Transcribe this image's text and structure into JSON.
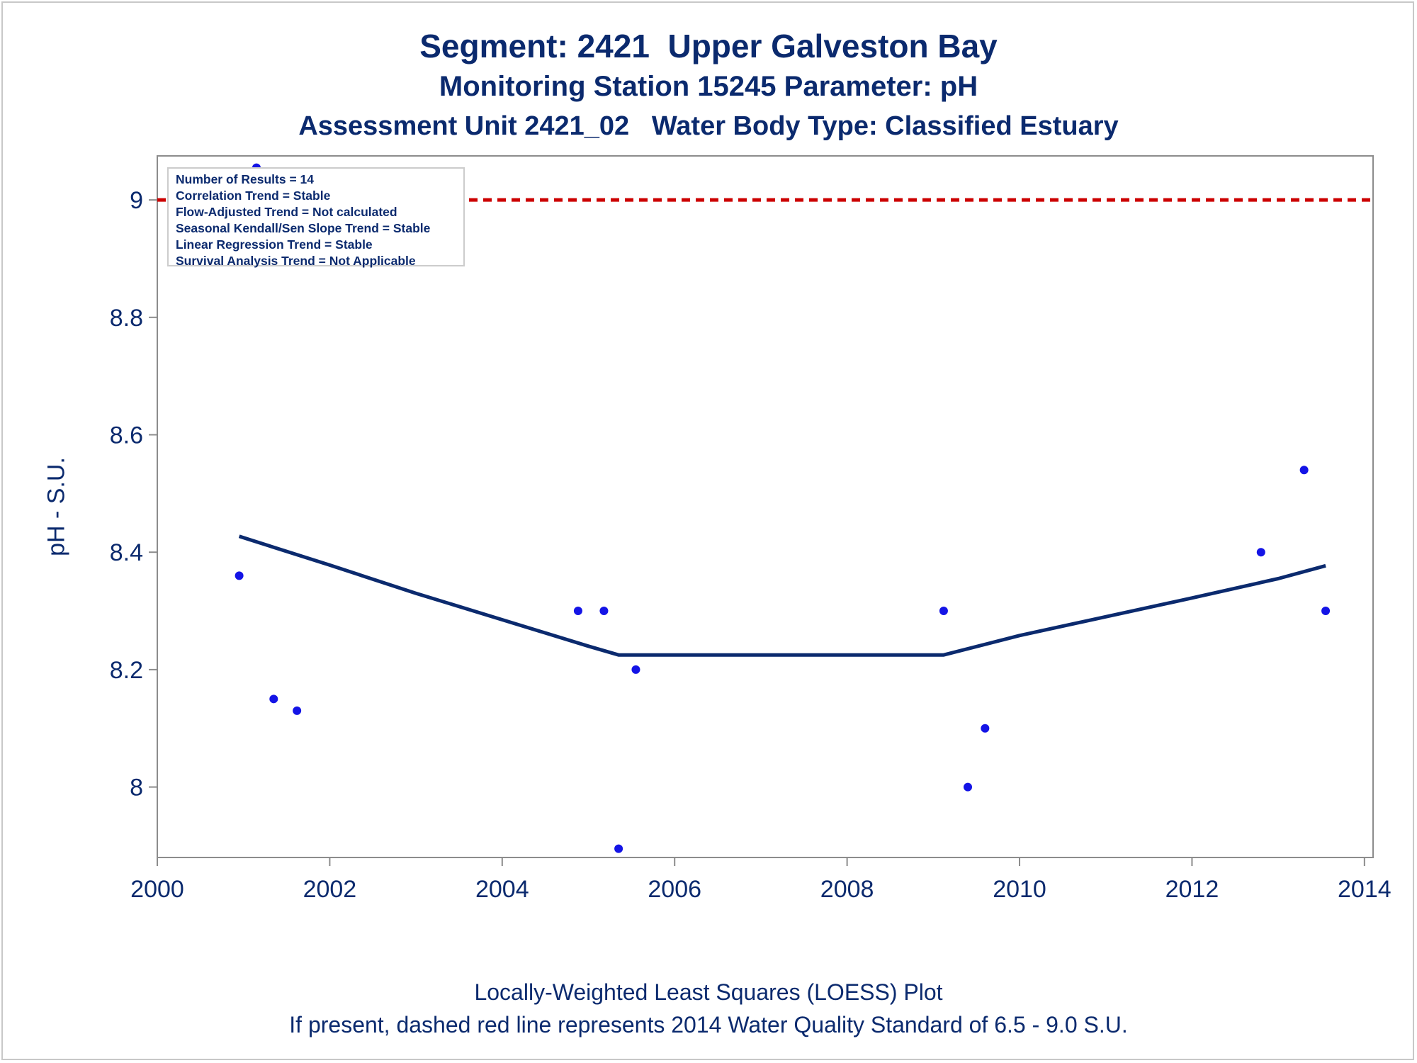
{
  "title": "Segment: 2421  Upper Galveston Bay",
  "subtitle": "Monitoring Station 15245 Parameter: pH",
  "subtitle2": "Assessment Unit 2421_02   Water Body Type: Classified Estuary",
  "stats": [
    "Number of Results = 14",
    "Correlation Trend = Stable",
    "Flow-Adjusted Trend = Not calculated",
    "Seasonal Kendall/Sen Slope Trend = Stable",
    "Linear Regression Trend = Stable",
    "Survival Analysis Trend = Not Applicable"
  ],
  "footer1": "Locally-Weighted Least Squares (LOESS) Plot",
  "footer2": "If present, dashed red line represents 2014 Water Quality Standard of 6.5 - 9.0 S.U.",
  "colors": {
    "points": "#1414e6",
    "loess": "#0b2a6e",
    "standard": "#cc0000",
    "text": "#0b2a6e",
    "axis": "#8c8c8c"
  },
  "chart_data": {
    "type": "scatter",
    "ylabel": "pH - S.U.",
    "xlabel": "",
    "xlim": [
      2000,
      2014.1
    ],
    "ylim": [
      7.88,
      9.075
    ],
    "x_ticks": [
      2000,
      2002,
      2004,
      2006,
      2008,
      2010,
      2012,
      2014
    ],
    "y_ticks": [
      8,
      8.2,
      8.4,
      8.6,
      8.8,
      9
    ],
    "y_tick_labels": [
      "8",
      "8.2",
      "8.4",
      "8.6",
      "8.8",
      "9"
    ],
    "x_tick_labels": [
      "2000",
      "2002",
      "2004",
      "2006",
      "2008",
      "2010",
      "2012",
      "2014"
    ],
    "grid": false,
    "points": [
      {
        "x": 2000.95,
        "y": 8.36
      },
      {
        "x": 2001.15,
        "y": 9.055
      },
      {
        "x": 2001.35,
        "y": 8.15
      },
      {
        "x": 2001.62,
        "y": 8.13
      },
      {
        "x": 2004.88,
        "y": 8.3
      },
      {
        "x": 2005.18,
        "y": 8.3
      },
      {
        "x": 2005.35,
        "y": 7.895
      },
      {
        "x": 2005.55,
        "y": 8.2
      },
      {
        "x": 2009.12,
        "y": 8.3
      },
      {
        "x": 2009.4,
        "y": 8.0
      },
      {
        "x": 2009.6,
        "y": 8.1
      },
      {
        "x": 2012.8,
        "y": 8.4
      },
      {
        "x": 2013.3,
        "y": 8.54
      },
      {
        "x": 2013.55,
        "y": 8.3
      }
    ],
    "loess": [
      {
        "x": 2000.95,
        "y": 8.427
      },
      {
        "x": 2002.0,
        "y": 8.378
      },
      {
        "x": 2003.0,
        "y": 8.33
      },
      {
        "x": 2004.0,
        "y": 8.285
      },
      {
        "x": 2005.0,
        "y": 8.24
      },
      {
        "x": 2005.35,
        "y": 8.225
      },
      {
        "x": 2009.12,
        "y": 8.225
      },
      {
        "x": 2010.0,
        "y": 8.258
      },
      {
        "x": 2011.0,
        "y": 8.29
      },
      {
        "x": 2012.0,
        "y": 8.322
      },
      {
        "x": 2013.0,
        "y": 8.355
      },
      {
        "x": 2013.55,
        "y": 8.377
      }
    ],
    "reference_lines": [
      {
        "y": 9.0,
        "style": "dashed"
      }
    ]
  }
}
